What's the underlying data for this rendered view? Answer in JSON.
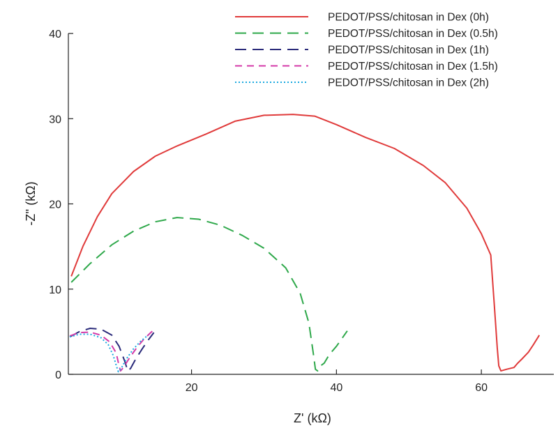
{
  "chart_data": {
    "type": "line",
    "xlabel": "Z' (kΩ)",
    "ylabel": "-Z'' (kΩ)",
    "xlim": [
      3,
      70
    ],
    "ylim": [
      0,
      40
    ],
    "x_ticks": [
      20,
      40,
      60
    ],
    "y_ticks": [
      0,
      10,
      20,
      30,
      40
    ],
    "grid": false,
    "legend_position": "top-right",
    "series": [
      {
        "name": "PEDOT/PSS/chitosan in Dex (0h)",
        "color": "#e03a3a",
        "dash": "solid",
        "points": [
          [
            3.4,
            11.5
          ],
          [
            5,
            15
          ],
          [
            7,
            18.5
          ],
          [
            9,
            21.2
          ],
          [
            12,
            23.8
          ],
          [
            15,
            25.6
          ],
          [
            18,
            26.8
          ],
          [
            22,
            28.2
          ],
          [
            26,
            29.7
          ],
          [
            30,
            30.4
          ],
          [
            34,
            30.5
          ],
          [
            37,
            30.3
          ],
          [
            40,
            29.3
          ],
          [
            44,
            27.8
          ],
          [
            48,
            26.5
          ],
          [
            52,
            24.5
          ],
          [
            55,
            22.5
          ],
          [
            58,
            19.5
          ],
          [
            60,
            16.5
          ],
          [
            61.3,
            14
          ],
          [
            61.8,
            8
          ],
          [
            62.2,
            3
          ],
          [
            62.4,
            1
          ],
          [
            62.7,
            0.4
          ],
          [
            63.5,
            0.6
          ],
          [
            64.5,
            0.8
          ],
          [
            65,
            1.3
          ],
          [
            65.6,
            1.8
          ],
          [
            66.5,
            2.6
          ],
          [
            67.2,
            3.5
          ],
          [
            68,
            4.6
          ]
        ]
      },
      {
        "name": "PEDOT/PSS/chitosan in Dex (0.5h)",
        "color": "#2ea84a",
        "dash": "long-dash",
        "points": [
          [
            3.4,
            10.8
          ],
          [
            6,
            13
          ],
          [
            9,
            15.2
          ],
          [
            12,
            16.8
          ],
          [
            15,
            17.9
          ],
          [
            18,
            18.4
          ],
          [
            21,
            18.2
          ],
          [
            24,
            17.5
          ],
          [
            27,
            16.3
          ],
          [
            30,
            14.8
          ],
          [
            33,
            12.5
          ],
          [
            35,
            9.5
          ],
          [
            36.2,
            6
          ],
          [
            36.8,
            2.5
          ],
          [
            37.1,
            0.6
          ],
          [
            37.4,
            0.4
          ],
          [
            37.8,
            1
          ],
          [
            38.3,
            1.3
          ],
          [
            39,
            2.3
          ],
          [
            40,
            3.3
          ],
          [
            41.5,
            5.1
          ]
        ]
      },
      {
        "name": "PEDOT/PSS/chitosan in Dex (1h)",
        "color": "#2a2a7a",
        "dash": "long-dash",
        "points": [
          [
            3.2,
            4.4
          ],
          [
            4.5,
            5
          ],
          [
            6,
            5.4
          ],
          [
            7.5,
            5.3
          ],
          [
            9,
            4.6
          ],
          [
            10,
            3.3
          ],
          [
            10.8,
            1.5
          ],
          [
            11.2,
            0.4
          ],
          [
            11.6,
            0.7
          ],
          [
            12.3,
            1.8
          ],
          [
            13.2,
            3
          ],
          [
            14,
            4
          ],
          [
            14.8,
            4.9
          ]
        ]
      },
      {
        "name": "PEDOT/PSS/chitosan in Dex (1.5h)",
        "color": "#d43aa8",
        "dash": "dash",
        "points": [
          [
            3.2,
            4.5
          ],
          [
            4.5,
            4.9
          ],
          [
            6,
            4.95
          ],
          [
            7.5,
            4.6
          ],
          [
            8.7,
            3.8
          ],
          [
            9.6,
            2.5
          ],
          [
            10,
            1
          ],
          [
            10.2,
            0.4
          ],
          [
            10.6,
            0.8
          ],
          [
            11.5,
            2
          ],
          [
            12.5,
            3.2
          ],
          [
            13.5,
            4.2
          ],
          [
            14.5,
            5
          ],
          [
            15,
            5.3
          ]
        ]
      },
      {
        "name": "PEDOT/PSS/chitosan in Dex (2h)",
        "color": "#19a8e0",
        "dash": "dotted",
        "points": [
          [
            3.2,
            4.4
          ],
          [
            4.5,
            4.7
          ],
          [
            6,
            4.7
          ],
          [
            7.5,
            4.3
          ],
          [
            8.5,
            3.5
          ],
          [
            9.2,
            2.2
          ],
          [
            9.7,
            0.8
          ],
          [
            9.9,
            0.3
          ],
          [
            10.3,
            0.7
          ],
          [
            11,
            1.8
          ],
          [
            12,
            3
          ],
          [
            13,
            3.9
          ],
          [
            14,
            4.6
          ]
        ]
      }
    ]
  }
}
